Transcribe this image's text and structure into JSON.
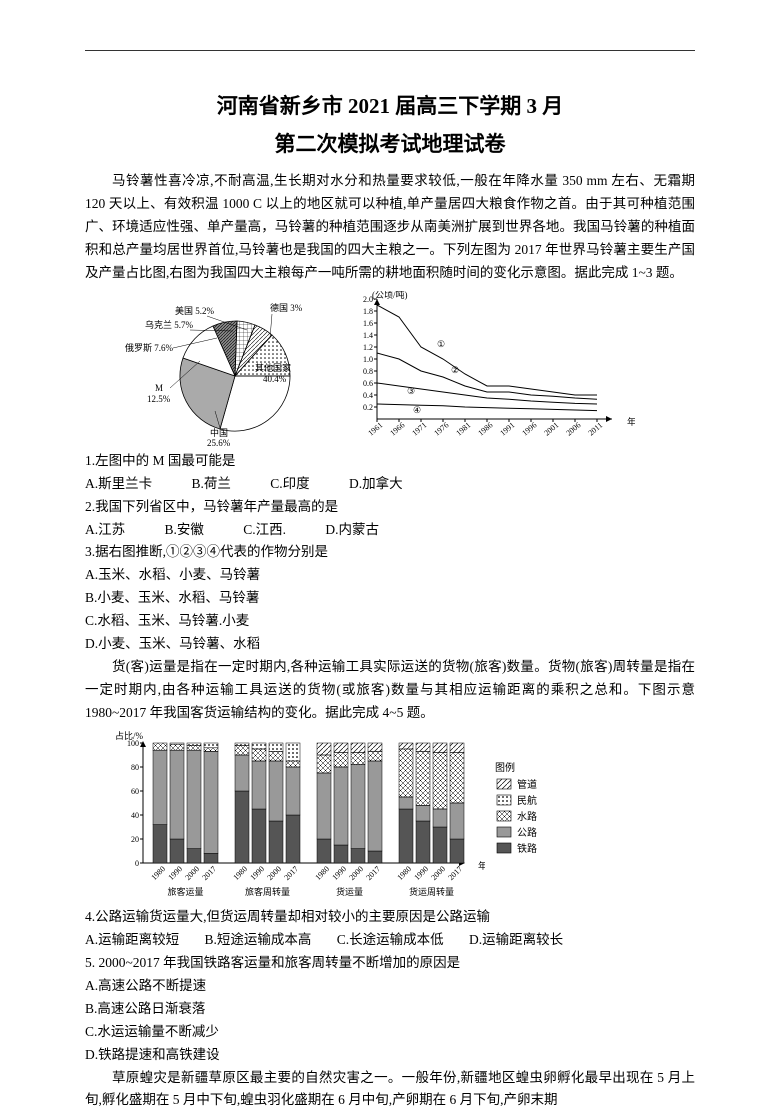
{
  "title": "河南省新乡市 2021 届高三下学期 3 月",
  "subtitle": "第二次模拟考试地理试卷",
  "intro1": "马铃薯性喜冷凉,不耐高温,生长期对水分和热量要求较低,一般在年降水量 350 mm 左右、无霜期 120 天以上、有效积温 1000 C 以上的地区就可以种植,单产量居四大粮食作物之首。由于其可种植范围广、环境适应性强、单产量高，马铃薯的种植范围逐步从南美洲扩展到世界各地。我国马铃薯的种植面积和总产量均居世界首位,马铃薯也是我国的四大主粮之一。下列左图为 2017 年世界马铃薯主要生产国及产量占比图,右图为我国四大主粮每产一吨所需的耕地面积随时间的变化示意图。据此完成 1~3 题。",
  "pie": {
    "title_none": "",
    "slices": [
      {
        "label": "德国 3%",
        "value": 3,
        "color": "#fff",
        "pattern": "dots"
      },
      {
        "label": "美国 5.2%",
        "value": 5.2,
        "color": "#fff",
        "pattern": "lines"
      },
      {
        "label": "乌克兰 5.7%",
        "value": 5.7,
        "color": "#fff",
        "pattern": "grid"
      },
      {
        "label": "俄罗斯 7.6%",
        "value": 7.6,
        "color": "#fff",
        "pattern": "dense"
      },
      {
        "label": "M 12.5%",
        "value": 12.5,
        "color": "#fff",
        "pattern": "none"
      },
      {
        "label": "中国 25.6%",
        "value": 25.6,
        "color": "#999",
        "pattern": "solid"
      },
      {
        "label": "其他国家 40.4%",
        "value": 40.4,
        "color": "#fff",
        "pattern": "none"
      }
    ]
  },
  "linechart": {
    "ylabel": "(公顷/吨)",
    "ylim": [
      0,
      2.0
    ],
    "ytick": [
      0.2,
      0.4,
      0.6,
      0.8,
      1.0,
      1.2,
      1.4,
      1.6,
      1.8,
      2.0
    ],
    "xlabel": "年份",
    "xticks": [
      "1961",
      "1966",
      "1971",
      "1976",
      "1981",
      "1986",
      "1991",
      "1996",
      "2001",
      "2006",
      "2011"
    ],
    "series_markers": [
      "①",
      "②",
      "③",
      "④"
    ],
    "series": [
      [
        1.9,
        1.7,
        1.2,
        1.0,
        0.75,
        0.55,
        0.55,
        0.5,
        0.45,
        0.4,
        0.4
      ],
      [
        1.1,
        1.0,
        0.8,
        0.7,
        0.55,
        0.45,
        0.45,
        0.4,
        0.38,
        0.35,
        0.33
      ],
      [
        0.6,
        0.55,
        0.5,
        0.45,
        0.4,
        0.35,
        0.33,
        0.3,
        0.28,
        0.26,
        0.25
      ],
      [
        0.25,
        0.24,
        0.23,
        0.22,
        0.2,
        0.19,
        0.18,
        0.17,
        0.16,
        0.15,
        0.14
      ]
    ]
  },
  "q1": "1.左图中的 M 国最可能是",
  "q1o": {
    "A": "A.斯里兰卡",
    "B": "B.荷兰",
    "C": "C.印度",
    "D": "D.加拿大"
  },
  "q2": "2.我国下列省区中，马铃薯年产量最高的是",
  "q2o": {
    "A": "A.江苏",
    "B": "B.安徽",
    "C": "C.江西.",
    "D": "D.内蒙古"
  },
  "q3": "3.据右图推断,①②③④代表的作物分别是",
  "q3o": {
    "A": "A.玉米、水稻、小麦、马铃薯",
    "B": "B.小麦、玉米、水稻、马铃薯",
    "C": "C.水稻、玉米、马铃薯.小麦",
    "D": "D.小麦、玉米、马铃薯、水稻"
  },
  "intro2": "货(客)运量是指在一定时期内,各种运输工具实际运送的货物(旅客)数量。货物(旅客)周转量是指在一定时期内,由各种运输工具运送的货物(或旅客)数量与其相应运输距离的乘积之总和。下图示意 1980~2017 年我国客货运输结构的变化。据此完成 4~5 题。",
  "barchart": {
    "ylabel": "占比/%",
    "ylim": [
      0,
      100
    ],
    "yticks": [
      0,
      20,
      40,
      60,
      80,
      100
    ],
    "xlabel": "年份",
    "groups": [
      "旅客运量",
      "旅客周转量",
      "货运量",
      "货运周转量"
    ],
    "years": [
      "1980",
      "1990",
      "2000",
      "2017"
    ],
    "legend": [
      {
        "label": "管道",
        "pattern": "hatch",
        "color": "#bbb"
      },
      {
        "label": "民航",
        "pattern": "dots",
        "color": "#ddd"
      },
      {
        "label": "水路",
        "pattern": "cross",
        "color": "#ccc"
      },
      {
        "label": "公路",
        "pattern": "solid",
        "color": "#888"
      },
      {
        "label": "铁路",
        "pattern": "solid",
        "color": "#555"
      }
    ],
    "data_comment": "stacked 0-100 percent bars, 4 groups × 4 years"
  },
  "q4": "4.公路运输货运量大,但货运周转量却相对较小的主要原因是公路运输",
  "q4o": {
    "A": "A.运输距离较短",
    "B": "B.短途运输成本高",
    "C": "C.长途运输成本低",
    "D": "D.运输距离较长"
  },
  "q5": "5. 2000~2017 年我国铁路客运量和旅客周转量不断增加的原因是",
  "q5o": {
    "A": "A.高速公路不断提速",
    "B": "B.高速公路日渐衰落",
    "C": "C.水运运输量不断减少",
    "D": "D.铁路提速和高铁建设"
  },
  "intro3": "草原蝗灾是新疆草原区最主要的自然灾害之一。一般年份,新疆地区蝗虫卵孵化最早出现在 5 月上旬,孵化盛期在 5 月中下旬,蝗虫羽化盛期在 6 月中旬,产卵期在 6 月下旬,产卵末期"
}
